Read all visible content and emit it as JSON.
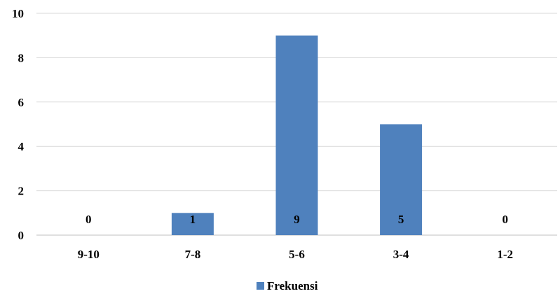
{
  "chart_data": {
    "type": "bar",
    "categories": [
      "9-10",
      "7-8",
      "5-6",
      "3-4",
      "1-2"
    ],
    "series": [
      {
        "name": "Frekuensi",
        "values": [
          0,
          1,
          9,
          5,
          0
        ],
        "color": "#4f81bd"
      }
    ],
    "yticks": [
      "0",
      "2",
      "4",
      "6",
      "8",
      "10"
    ],
    "ylim": [
      0,
      10
    ],
    "grid": true,
    "data_labels": [
      "0",
      "1",
      "9",
      "5",
      "0"
    ],
    "legend_position": "bottom"
  }
}
